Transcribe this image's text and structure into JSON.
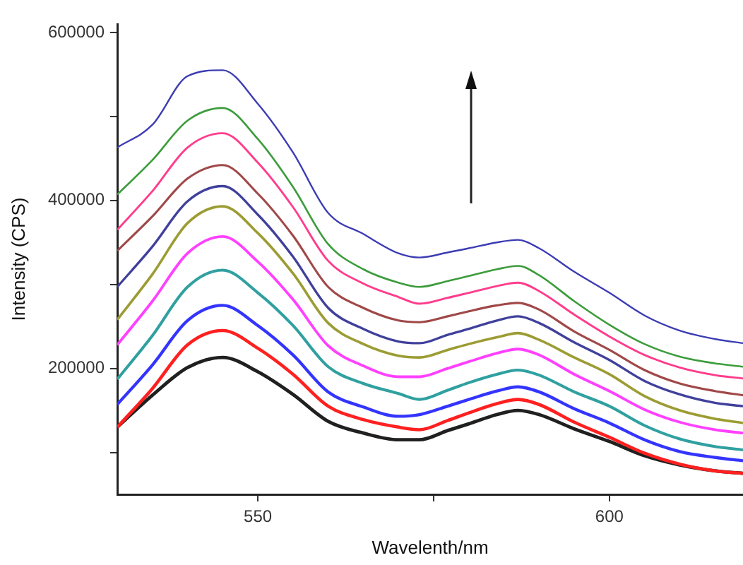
{
  "chart_data": {
    "type": "line",
    "xlabel": "Wavelenth/nm",
    "ylabel": "Intensity (CPS)",
    "x": [
      530,
      535,
      540,
      545,
      550,
      555,
      560,
      565,
      570,
      573,
      577,
      580,
      584,
      587,
      590,
      595,
      600,
      605,
      610,
      615,
      619
    ],
    "series": [
      {
        "color": "#3c3cb4",
        "values": [
          463000,
          490000,
          548000,
          555000,
          515000,
          457000,
          385000,
          360000,
          337000,
          332000,
          338000,
          343000,
          350000,
          353000,
          343000,
          315000,
          290000,
          263000,
          245000,
          235000,
          230000
        ]
      },
      {
        "color": "#3c9c3c",
        "values": [
          407000,
          448000,
          495000,
          510000,
          473000,
          416000,
          348000,
          318000,
          302000,
          297000,
          304000,
          310000,
          318000,
          322000,
          311000,
          280000,
          252000,
          229000,
          214000,
          206000,
          202000
        ]
      },
      {
        "color": "#ff3c8c",
        "values": [
          365000,
          411000,
          463000,
          480000,
          445000,
          392000,
          328000,
          301000,
          285000,
          277000,
          284000,
          290000,
          298000,
          302000,
          292000,
          264000,
          238000,
          216000,
          201000,
          192000,
          188000
        ]
      },
      {
        "color": "#a04848",
        "values": [
          340000,
          381000,
          426000,
          442000,
          408000,
          358000,
          297000,
          272000,
          257000,
          255000,
          262000,
          268000,
          275000,
          278000,
          270000,
          244000,
          222000,
          198000,
          182000,
          173000,
          168000
        ]
      },
      {
        "color": "#40409c",
        "values": [
          297000,
          345000,
          399000,
          417000,
          383000,
          333000,
          272000,
          247000,
          232000,
          230000,
          240000,
          247000,
          257000,
          262000,
          254000,
          231000,
          210000,
          185000,
          169000,
          159000,
          155000
        ]
      },
      {
        "color": "#9c9c34",
        "values": [
          258000,
          312000,
          373000,
          393000,
          361000,
          313000,
          254000,
          229000,
          215000,
          213000,
          222000,
          229000,
          237000,
          242000,
          234000,
          213000,
          193000,
          167000,
          150000,
          140000,
          135000
        ]
      },
      {
        "color": "#ff40ff",
        "values": [
          228000,
          280000,
          337000,
          357000,
          327000,
          282000,
          227000,
          203000,
          190000,
          190000,
          200000,
          208000,
          218000,
          223000,
          216000,
          193000,
          173000,
          151000,
          136000,
          127000,
          123000
        ]
      },
      {
        "color": "#30a0a0",
        "values": [
          187000,
          239000,
          297000,
          317000,
          290000,
          251000,
          202000,
          182000,
          170000,
          163000,
          174000,
          183000,
          193000,
          198000,
          192000,
          172000,
          155000,
          132000,
          116000,
          107000,
          103000
        ]
      },
      {
        "color": "#3434ff",
        "values": [
          157000,
          204000,
          257000,
          275000,
          251000,
          216000,
          172000,
          154000,
          143000,
          145000,
          155000,
          163000,
          173000,
          178000,
          172000,
          152000,
          135000,
          115000,
          101000,
          94000,
          90000
        ]
      },
      {
        "color": "#ff2020",
        "values": [
          130000,
          176000,
          228000,
          245000,
          224000,
          193000,
          155000,
          139000,
          130000,
          127000,
          138000,
          147000,
          158000,
          163000,
          157000,
          136000,
          118000,
          99000,
          86000,
          78000,
          75000
        ]
      },
      {
        "color": "#202020",
        "values": [
          130000,
          168000,
          201000,
          213000,
          196000,
          169000,
          137000,
          123000,
          115000,
          115000,
          126000,
          134000,
          145000,
          150000,
          145000,
          128000,
          113000,
          96000,
          85000,
          78000,
          75000
        ]
      }
    ],
    "xlim": [
      530,
      619
    ],
    "xticks": [
      550,
      {
        "value": 575,
        "label": null
      },
      600
    ],
    "ylim": [
      50000,
      610000
    ],
    "yticks": [
      {
        "value": 100000,
        "label": null
      },
      200000,
      {
        "value": 300000,
        "label": null
      },
      400000,
      {
        "value": 500000,
        "label": null
      },
      600000
    ],
    "marker": "none",
    "line_style": "solid",
    "grid": false,
    "legend": false
  }
}
